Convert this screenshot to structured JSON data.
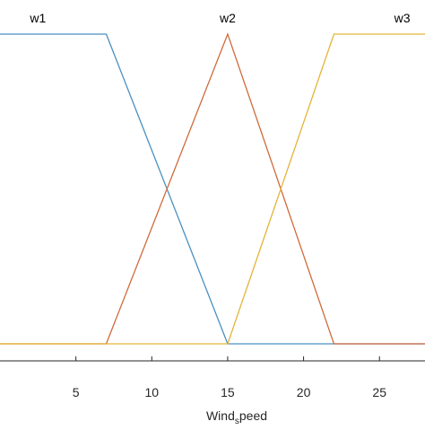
{
  "chart_data": {
    "type": "line",
    "xlabel_parts": [
      "Wind",
      "s",
      "peed"
    ],
    "xlim": [
      0,
      28
    ],
    "ylim": [
      0,
      1
    ],
    "xticks": [
      5,
      10,
      15,
      20,
      25
    ],
    "xtick_labels": [
      "5",
      "10",
      "15",
      "20",
      "25"
    ],
    "grid": false,
    "series": [
      {
        "name": "w1",
        "color": "#4a90c2",
        "x": [
          0,
          7,
          15,
          22,
          28
        ],
        "y": [
          1,
          1,
          0,
          0,
          0
        ]
      },
      {
        "name": "w2",
        "color": "#d06a3c",
        "x": [
          0,
          7,
          15,
          22,
          28
        ],
        "y": [
          0,
          0,
          1,
          0,
          0
        ]
      },
      {
        "name": "w3",
        "color": "#e3b436",
        "x": [
          0,
          15,
          22,
          28
        ],
        "y": [
          0,
          0,
          1,
          1
        ]
      }
    ]
  }
}
